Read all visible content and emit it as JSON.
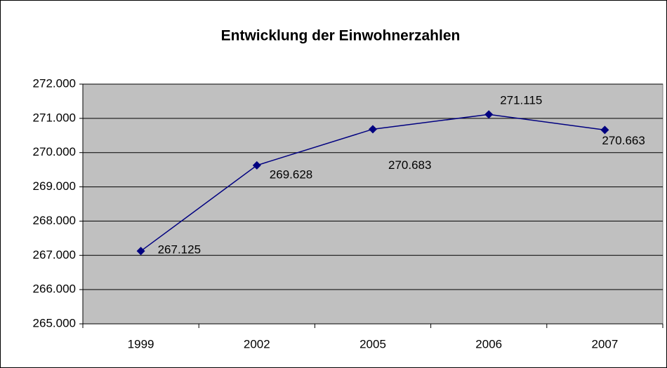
{
  "chart_data": {
    "type": "line",
    "title": "Entwicklung der Einwohnerzahlen",
    "categories": [
      "1999",
      "2002",
      "2005",
      "2006",
      "2007"
    ],
    "values": [
      267125,
      269628,
      270683,
      271115,
      270663
    ],
    "value_labels": [
      "267.125",
      "269.628",
      "270.683",
      "271.115",
      "270.663"
    ],
    "color": "#000080",
    "ylim": [
      265000,
      272000
    ],
    "yticks": [
      {
        "value": 265000,
        "label": "265.000"
      },
      {
        "value": 266000,
        "label": "266.000"
      },
      {
        "value": 267000,
        "label": "267.000"
      },
      {
        "value": 268000,
        "label": "268.000"
      },
      {
        "value": 269000,
        "label": "269.000"
      },
      {
        "value": 270000,
        "label": "270.000"
      },
      {
        "value": 271000,
        "label": "271.000"
      },
      {
        "value": 272000,
        "label": "272.000"
      }
    ],
    "grid": true
  }
}
